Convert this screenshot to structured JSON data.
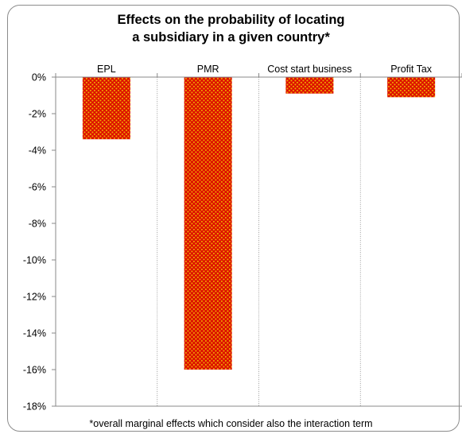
{
  "chart_data": {
    "type": "bar",
    "title_lines": [
      "Effects on the probability of locating",
      "a subsidiary in a given country*"
    ],
    "categories": [
      "EPL",
      "PMR",
      "Cost start business",
      "Profit Tax"
    ],
    "values": [
      -3.4,
      -16.0,
      -0.9,
      -1.1
    ],
    "unit": "%",
    "ylim": [
      -18,
      0
    ],
    "y_ticks": [
      "0%",
      "-2%",
      "-4%",
      "-6%",
      "-8%",
      "-10%",
      "-12%",
      "-14%",
      "-16%",
      "-18%"
    ],
    "category_axis_position": "top",
    "grid": "vertical dotted category separators",
    "bar_fill": "#dd1100",
    "bar_dot_color": "#f0a800",
    "footnote": "*overall marginal effects which consider also the interaction term"
  }
}
